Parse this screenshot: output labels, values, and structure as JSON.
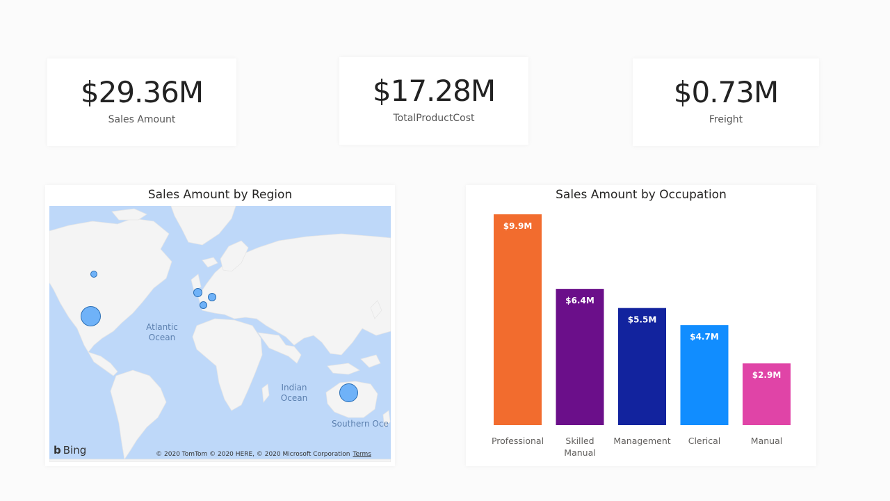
{
  "kpis": [
    {
      "value": "$29.36M",
      "label": "Sales Amount"
    },
    {
      "value": "$17.28M",
      "label": "TotalProductCost"
    },
    {
      "value": "$0.73M",
      "label": "Freight"
    }
  ],
  "map": {
    "title": "Sales Amount by Region",
    "ocean_labels": {
      "atlantic": "Atlantic\nOcean",
      "indian": "Indian\nOcean",
      "southern": "Southern Oce"
    },
    "bing_label": "Bing",
    "copyright": "© 2020 TomTom © 2020 HERE, © 2020 Microsoft Corporation",
    "terms": "Terms",
    "colors": {
      "water": "#bed8f9",
      "land": "#f4f4f4",
      "bubble": "#6fb2f8",
      "bubble_border": "#2b6fb5"
    }
  },
  "chart_data": {
    "type": "bar",
    "title": "Sales Amount by Occupation",
    "categories": [
      "Professional",
      "Skilled Manual",
      "Management",
      "Clerical",
      "Manual"
    ],
    "values": [
      9.9,
      6.4,
      5.5,
      4.7,
      2.9
    ],
    "data_labels": [
      "$9.9M",
      "$6.4M",
      "$5.5M",
      "$4.7M",
      "$2.9M"
    ],
    "colors": [
      "#f26c2e",
      "#6b0f8a",
      "#12239e",
      "#118dff",
      "#e044a7"
    ],
    "xlabel": "",
    "ylabel": "",
    "ylim": [
      0,
      9.9
    ],
    "grid": false
  }
}
